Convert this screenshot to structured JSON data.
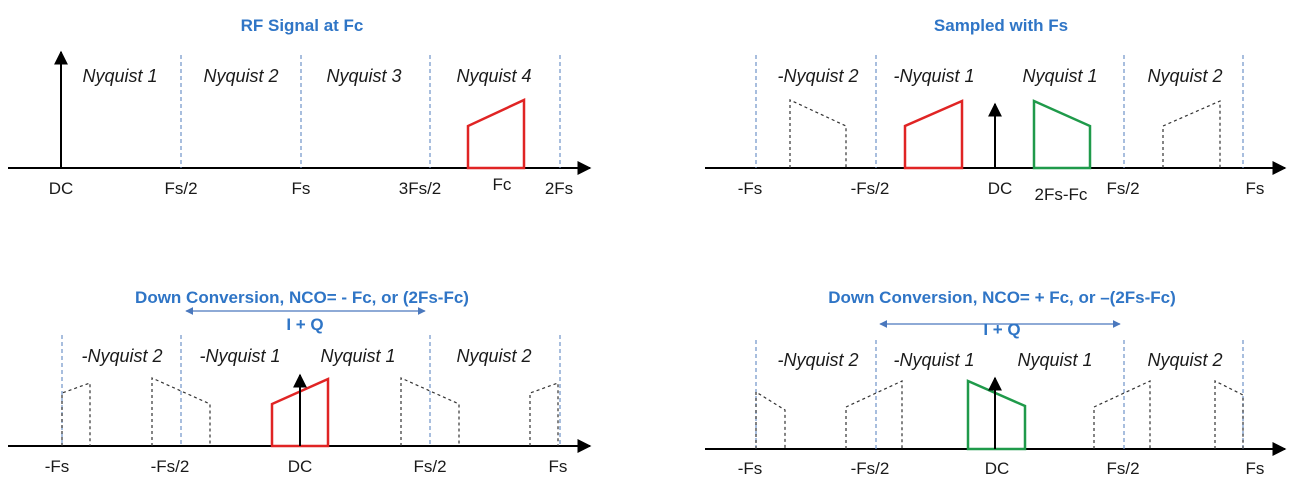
{
  "panels": [
    {
      "id": "rf-signal",
      "title": "RF Signal at Fc",
      "nyquist_labels": [
        "Nyquist 1",
        "Nyquist 2",
        "Nyquist 3",
        "Nyquist 4"
      ],
      "tick_labels": [
        "DC",
        "Fs/2",
        "Fs",
        "3Fs/2",
        "Fc",
        "2Fs"
      ]
    },
    {
      "id": "sampled",
      "title": "Sampled with Fs",
      "nyquist_labels": [
        "-Nyquist 2",
        "-Nyquist 1",
        "Nyquist 1",
        "Nyquist 2"
      ],
      "tick_labels": [
        "-Fs",
        "-Fs/2",
        "DC",
        "2Fs-Fc",
        "Fs/2",
        "Fs"
      ]
    },
    {
      "id": "down-conv-neg",
      "title": "Down Conversion, NCO= - Fc, or (2Fs-Fc)",
      "band_label": "I + Q",
      "nyquist_labels": [
        "-Nyquist 2",
        "-Nyquist 1",
        "Nyquist 1",
        "Nyquist 2"
      ],
      "tick_labels": [
        "-Fs",
        "-Fs/2",
        "DC",
        "Fs/2",
        "Fs"
      ]
    },
    {
      "id": "down-conv-pos",
      "title": "Down Conversion, NCO= + Fc, or –(2Fs-Fc)",
      "band_label": "I + Q",
      "nyquist_labels": [
        "-Nyquist 2",
        "-Nyquist 1",
        "Nyquist 1",
        "Nyquist 2"
      ],
      "tick_labels": [
        "-Fs",
        "-Fs/2",
        "DC",
        "Fs/2",
        "Fs"
      ]
    }
  ],
  "colors": {
    "title": "#2f75c6",
    "signal_original": "#e02424",
    "signal_alias": "#1f9a4a",
    "guide_line": "#6f93c7"
  }
}
